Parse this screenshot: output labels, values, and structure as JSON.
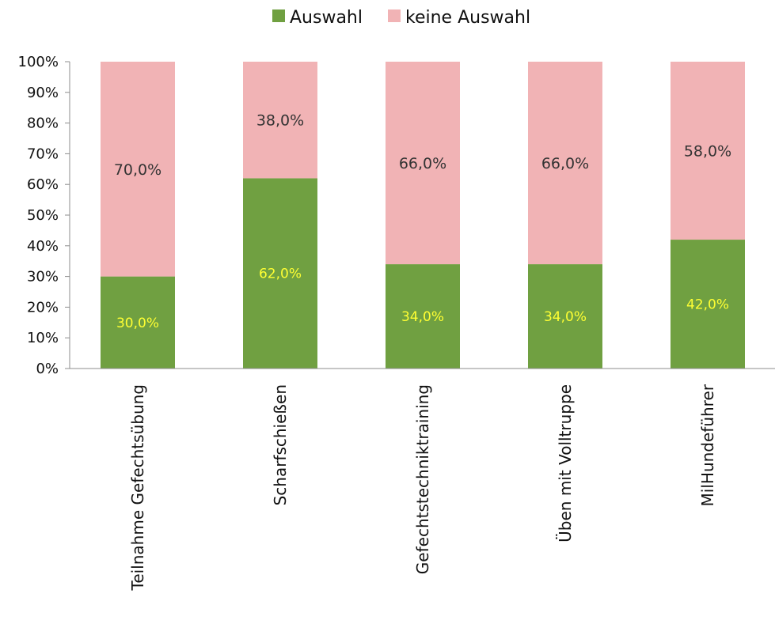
{
  "chart_data": {
    "type": "bar",
    "stacked": true,
    "categories": [
      "Teilnahme Gefechtsübung",
      "Scharfschießen",
      "Gefechtstechniktraining",
      "Üben mit Volltruppe",
      "MilHundeführer"
    ],
    "series": [
      {
        "name": "Auswahl",
        "color": "#70a041",
        "values": [
          30.0,
          62.0,
          34.0,
          34.0,
          42.0
        ],
        "labels": [
          "30,0%",
          "62,0%",
          "34,0%",
          "34,0%",
          "42,0%"
        ],
        "label_color": "#ffff33"
      },
      {
        "name": "keine Auswahl",
        "color": "#f1b3b5",
        "values": [
          70.0,
          38.0,
          66.0,
          66.0,
          58.0
        ],
        "labels": [
          "70,0%",
          "38,0%",
          "66,0%",
          "66,0%",
          "58,0%"
        ],
        "label_color": "#333333"
      }
    ],
    "y_ticks": [
      "0%",
      "10%",
      "20%",
      "30%",
      "40%",
      "50%",
      "60%",
      "70%",
      "80%",
      "90%",
      "100%"
    ],
    "ylim": [
      0,
      100
    ],
    "legend_position": "top-center",
    "grid": false
  }
}
